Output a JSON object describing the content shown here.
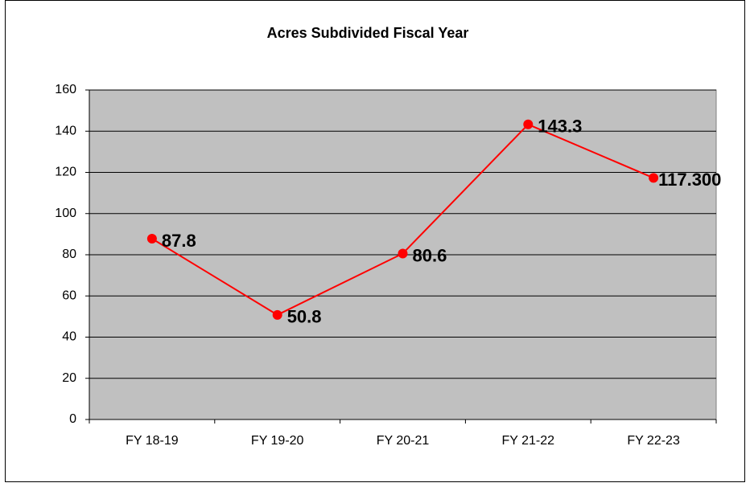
{
  "chart_data": {
    "type": "line",
    "title": "Acres Subdivided Fiscal Year",
    "categories": [
      "FY 18-19",
      "FY 19-20",
      "FY 20-21",
      "FY 21-22",
      "FY 22-23"
    ],
    "values": [
      87.8,
      50.8,
      80.6,
      143.3,
      117.3
    ],
    "value_labels": [
      "87.8",
      "50.8",
      "80.6",
      "143.3",
      "117.300"
    ],
    "color": "#ff0000",
    "ylim": [
      0,
      160
    ],
    "yticks": [
      0,
      20,
      40,
      60,
      80,
      100,
      120,
      140,
      160
    ],
    "grid": true
  }
}
